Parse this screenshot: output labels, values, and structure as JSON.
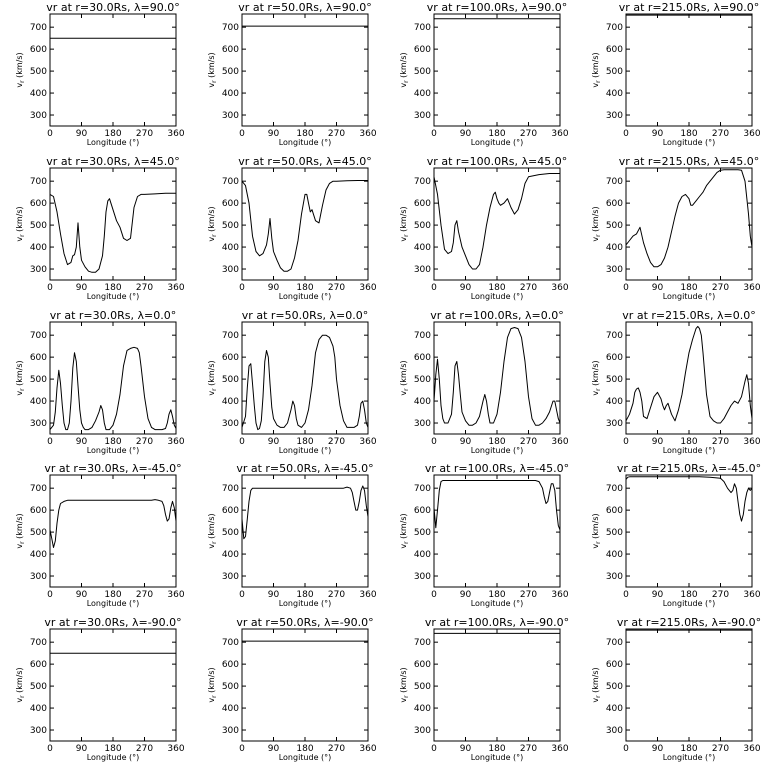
{
  "figure": {
    "xlabel": "Longitude (°)",
    "ylabel": "v",
    "ylabel_subscript": "r",
    "ylabel_unit": " (km/s)",
    "x_ticks": [
      "0",
      "90",
      "180",
      "270",
      "360"
    ],
    "y_ticks": [
      "300",
      "400",
      "500",
      "600",
      "700"
    ],
    "line_color": "#000000",
    "background": "#ffffff"
  },
  "chart_data": [
    {
      "type": "line",
      "title": "vr at r=30.0Rs, λ=90.0°",
      "xlabel": "Longitude (°)",
      "ylabel": "vr (km/s)",
      "xlim": [
        0,
        360
      ],
      "ylim": [
        250,
        760
      ],
      "x": [
        0,
        360
      ],
      "y": [
        650,
        650
      ]
    },
    {
      "type": "line",
      "title": "vr at r=50.0Rs, λ=90.0°",
      "xlabel": "Longitude (°)",
      "ylabel": "vr (km/s)",
      "xlim": [
        0,
        360
      ],
      "ylim": [
        250,
        760
      ],
      "x": [
        0,
        360
      ],
      "y": [
        705,
        705
      ]
    },
    {
      "type": "line",
      "title": "vr at r=100.0Rs, λ=90.0°",
      "xlabel": "Longitude (°)",
      "ylabel": "vr (km/s)",
      "xlim": [
        0,
        360
      ],
      "ylim": [
        250,
        760
      ],
      "x": [
        0,
        360
      ],
      "y": [
        738,
        738
      ]
    },
    {
      "type": "line",
      "title": "vr at r=215.0Rs, λ=90.0°",
      "xlabel": "Longitude (°)",
      "ylabel": "vr (km/s)",
      "xlim": [
        0,
        360
      ],
      "ylim": [
        250,
        760
      ],
      "x": [
        0,
        360
      ],
      "y": [
        755,
        755
      ]
    },
    {
      "type": "line",
      "title": "vr at r=30.0Rs, λ=45.0°",
      "xlabel": "Longitude (°)",
      "ylabel": "vr (km/s)",
      "xlim": [
        0,
        360
      ],
      "ylim": [
        250,
        760
      ],
      "x": [
        0,
        10,
        20,
        30,
        40,
        50,
        60,
        65,
        70,
        75,
        80,
        85,
        90,
        100,
        110,
        120,
        130,
        140,
        150,
        155,
        160,
        165,
        170,
        180,
        190,
        200,
        210,
        220,
        230,
        240,
        250,
        260,
        270,
        300,
        330,
        360
      ],
      "y": [
        640,
        630,
        560,
        460,
        370,
        320,
        330,
        360,
        365,
        400,
        510,
        400,
        340,
        310,
        290,
        285,
        285,
        300,
        360,
        450,
        560,
        610,
        620,
        570,
        520,
        490,
        440,
        430,
        440,
        580,
        630,
        640,
        640,
        642,
        645,
        645
      ]
    },
    {
      "type": "line",
      "title": "vr at r=50.0Rs, λ=45.0°",
      "xlabel": "Longitude (°)",
      "ylabel": "vr (km/s)",
      "xlim": [
        0,
        360
      ],
      "ylim": [
        250,
        760
      ],
      "x": [
        0,
        10,
        20,
        30,
        40,
        50,
        60,
        70,
        75,
        80,
        85,
        90,
        100,
        110,
        120,
        130,
        140,
        150,
        160,
        170,
        180,
        185,
        190,
        195,
        200,
        210,
        220,
        230,
        240,
        250,
        260,
        270,
        300,
        330,
        360
      ],
      "y": [
        700,
        680,
        600,
        450,
        380,
        360,
        370,
        410,
        460,
        530,
        440,
        380,
        340,
        305,
        290,
        290,
        300,
        350,
        430,
        550,
        640,
        640,
        600,
        560,
        570,
        520,
        510,
        590,
        660,
        690,
        700,
        700,
        702,
        703,
        703
      ]
    },
    {
      "type": "line",
      "title": "vr at r=100.0Rs, λ=45.0°",
      "xlabel": "Longitude (°)",
      "ylabel": "vr (km/s)",
      "xlim": [
        0,
        360
      ],
      "ylim": [
        250,
        760
      ],
      "x": [
        0,
        10,
        20,
        30,
        40,
        50,
        55,
        60,
        65,
        70,
        80,
        90,
        100,
        110,
        120,
        130,
        140,
        150,
        160,
        170,
        175,
        180,
        185,
        190,
        200,
        210,
        220,
        230,
        240,
        250,
        260,
        270,
        300,
        330,
        360
      ],
      "y": [
        720,
        640,
        500,
        390,
        370,
        380,
        420,
        500,
        520,
        470,
        400,
        360,
        320,
        300,
        300,
        320,
        400,
        500,
        580,
        640,
        650,
        620,
        600,
        590,
        600,
        620,
        580,
        550,
        570,
        620,
        690,
        720,
        730,
        735,
        735
      ]
    },
    {
      "type": "line",
      "title": "vr at r=215.0Rs, λ=45.0°",
      "xlabel": "Longitude (°)",
      "ylabel": "vr (km/s)",
      "xlim": [
        0,
        360
      ],
      "ylim": [
        250,
        760
      ],
      "x": [
        0,
        10,
        20,
        30,
        40,
        50,
        60,
        70,
        80,
        90,
        100,
        110,
        120,
        130,
        140,
        150,
        160,
        170,
        180,
        185,
        190,
        200,
        210,
        220,
        230,
        240,
        250,
        260,
        270,
        280,
        290,
        300,
        320,
        330,
        340,
        350,
        355,
        360
      ],
      "y": [
        410,
        430,
        450,
        460,
        490,
        420,
        370,
        330,
        310,
        310,
        320,
        350,
        400,
        470,
        540,
        600,
        630,
        640,
        620,
        590,
        590,
        610,
        630,
        650,
        680,
        700,
        720,
        740,
        750,
        752,
        752,
        752,
        752,
        750,
        700,
        550,
        450,
        400
      ]
    },
    {
      "type": "line",
      "title": "vr at r=30.0Rs, λ=0.0°",
      "xlabel": "Longitude (°)",
      "ylabel": "vr (km/s)",
      "xlim": [
        0,
        360
      ],
      "ylim": [
        250,
        760
      ],
      "x": [
        0,
        10,
        15,
        20,
        25,
        30,
        35,
        40,
        45,
        50,
        55,
        60,
        65,
        70,
        75,
        80,
        85,
        90,
        95,
        100,
        105,
        110,
        120,
        130,
        140,
        145,
        150,
        155,
        160,
        170,
        180,
        190,
        200,
        210,
        220,
        230,
        240,
        250,
        255,
        260,
        270,
        280,
        290,
        300,
        310,
        320,
        330,
        335,
        340,
        345,
        350,
        355,
        360
      ],
      "y": [
        270,
        290,
        350,
        460,
        540,
        480,
        380,
        300,
        270,
        270,
        300,
        400,
        550,
        620,
        580,
        470,
        360,
        300,
        280,
        270,
        270,
        270,
        280,
        310,
        350,
        380,
        360,
        300,
        270,
        270,
        290,
        340,
        430,
        560,
        630,
        640,
        645,
        640,
        620,
        560,
        420,
        320,
        280,
        270,
        270,
        270,
        275,
        300,
        340,
        360,
        330,
        290,
        275
      ]
    },
    {
      "type": "line",
      "title": "vr at r=50.0Rs, λ=0.0°",
      "xlabel": "Longitude (°)",
      "ylabel": "vr (km/s)",
      "xlim": [
        0,
        360
      ],
      "ylim": [
        250,
        760
      ],
      "x": [
        0,
        10,
        15,
        20,
        25,
        30,
        35,
        40,
        45,
        50,
        55,
        60,
        65,
        70,
        75,
        80,
        85,
        90,
        100,
        110,
        120,
        130,
        140,
        145,
        150,
        155,
        160,
        170,
        180,
        190,
        200,
        210,
        220,
        230,
        240,
        250,
        260,
        265,
        270,
        280,
        290,
        300,
        310,
        320,
        330,
        335,
        340,
        345,
        350,
        355,
        360
      ],
      "y": [
        280,
        330,
        460,
        560,
        570,
        480,
        380,
        300,
        270,
        275,
        310,
        420,
        580,
        630,
        600,
        480,
        370,
        320,
        290,
        280,
        280,
        300,
        360,
        400,
        380,
        320,
        290,
        280,
        300,
        360,
        470,
        620,
        680,
        700,
        700,
        690,
        650,
        600,
        500,
        380,
        310,
        280,
        280,
        280,
        290,
        330,
        390,
        400,
        360,
        300,
        280
      ]
    },
    {
      "type": "line",
      "title": "vr at r=100.0Rs, λ=0.0°",
      "xlabel": "Longitude (°)",
      "ylabel": "vr (km/s)",
      "xlim": [
        0,
        360
      ],
      "ylim": [
        250,
        760
      ],
      "x": [
        0,
        5,
        10,
        15,
        20,
        25,
        30,
        40,
        50,
        55,
        60,
        65,
        70,
        75,
        80,
        90,
        100,
        110,
        120,
        130,
        140,
        145,
        150,
        155,
        160,
        170,
        180,
        190,
        200,
        210,
        220,
        230,
        240,
        250,
        260,
        270,
        280,
        290,
        300,
        310,
        320,
        330,
        340,
        345,
        350,
        355,
        360
      ],
      "y": [
        400,
        520,
        590,
        500,
        380,
        320,
        300,
        300,
        340,
        440,
        560,
        580,
        520,
        430,
        350,
        310,
        290,
        290,
        300,
        330,
        400,
        430,
        400,
        340,
        300,
        300,
        340,
        440,
        580,
        690,
        730,
        735,
        730,
        690,
        580,
        420,
        320,
        290,
        290,
        300,
        320,
        350,
        400,
        400,
        360,
        320,
        300
      ]
    },
    {
      "type": "line",
      "title": "vr at r=215.0Rs, λ=0.0°",
      "xlabel": "Longitude (°)",
      "ylabel": "vr (km/s)",
      "xlim": [
        0,
        360
      ],
      "ylim": [
        250,
        760
      ],
      "x": [
        0,
        10,
        20,
        25,
        30,
        35,
        40,
        45,
        50,
        60,
        70,
        80,
        90,
        100,
        105,
        110,
        115,
        120,
        130,
        140,
        150,
        160,
        170,
        180,
        190,
        200,
        205,
        210,
        215,
        220,
        230,
        240,
        250,
        260,
        270,
        280,
        290,
        300,
        310,
        320,
        330,
        340,
        345,
        350,
        355,
        360
      ],
      "y": [
        310,
        340,
        390,
        440,
        455,
        460,
        440,
        400,
        330,
        320,
        370,
        420,
        440,
        410,
        380,
        360,
        380,
        390,
        340,
        310,
        360,
        430,
        530,
        620,
        680,
        730,
        740,
        730,
        700,
        620,
        430,
        330,
        310,
        300,
        300,
        320,
        350,
        380,
        400,
        390,
        420,
        490,
        520,
        480,
        380,
        320
      ]
    },
    {
      "type": "line",
      "title": "vr at r=30.0Rs, λ=-45.0°",
      "xlabel": "Longitude (°)",
      "ylabel": "vr (km/s)",
      "xlim": [
        0,
        360
      ],
      "ylim": [
        250,
        760
      ],
      "x": [
        0,
        5,
        10,
        15,
        20,
        25,
        30,
        40,
        50,
        60,
        70,
        90,
        120,
        150,
        180,
        210,
        240,
        270,
        290,
        300,
        310,
        320,
        325,
        330,
        335,
        340,
        345,
        350,
        355,
        360
      ],
      "y": [
        510,
        470,
        430,
        460,
        540,
        600,
        630,
        640,
        645,
        645,
        645,
        645,
        645,
        645,
        645,
        645,
        645,
        645,
        645,
        648,
        645,
        640,
        620,
        580,
        550,
        560,
        610,
        640,
        610,
        550
      ]
    },
    {
      "type": "line",
      "title": "vr at r=50.0Rs, λ=-45.0°",
      "xlabel": "Longitude (°)",
      "ylabel": "vr (km/s)",
      "xlim": [
        0,
        360
      ],
      "ylim": [
        250,
        760
      ],
      "x": [
        0,
        5,
        10,
        15,
        20,
        25,
        30,
        40,
        60,
        90,
        120,
        150,
        180,
        210,
        240,
        270,
        290,
        300,
        310,
        315,
        320,
        325,
        330,
        335,
        340,
        345,
        350,
        355,
        360
      ],
      "y": [
        560,
        470,
        480,
        560,
        640,
        690,
        700,
        700,
        700,
        700,
        700,
        700,
        700,
        700,
        700,
        700,
        700,
        705,
        700,
        680,
        640,
        600,
        600,
        640,
        690,
        710,
        690,
        620,
        570
      ]
    },
    {
      "type": "line",
      "title": "vr at r=100.0Rs, λ=-45.0°",
      "xlabel": "Longitude (°)",
      "ylabel": "vr (km/s)",
      "xlim": [
        0,
        360
      ],
      "ylim": [
        250,
        760
      ],
      "x": [
        0,
        5,
        10,
        15,
        20,
        25,
        30,
        40,
        60,
        90,
        120,
        150,
        180,
        210,
        240,
        270,
        290,
        300,
        310,
        315,
        320,
        325,
        330,
        335,
        340,
        345,
        350,
        355,
        360
      ],
      "y": [
        610,
        520,
        600,
        690,
        730,
        735,
        735,
        735,
        735,
        735,
        735,
        735,
        735,
        735,
        735,
        735,
        735,
        730,
        700,
        660,
        630,
        640,
        680,
        720,
        720,
        690,
        600,
        530,
        510
      ]
    },
    {
      "type": "line",
      "title": "vr at r=215.0Rs, λ=-45.0°",
      "xlabel": "Longitude (°)",
      "ylabel": "vr (km/s)",
      "xlim": [
        0,
        360
      ],
      "ylim": [
        250,
        760
      ],
      "x": [
        0,
        5,
        10,
        20,
        40,
        60,
        90,
        120,
        150,
        180,
        210,
        240,
        270,
        280,
        290,
        300,
        305,
        310,
        315,
        320,
        325,
        330,
        335,
        340,
        345,
        350,
        355,
        360
      ],
      "y": [
        740,
        750,
        752,
        752,
        752,
        752,
        752,
        752,
        752,
        752,
        752,
        750,
        745,
        730,
        700,
        680,
        690,
        720,
        700,
        640,
        580,
        550,
        580,
        640,
        680,
        700,
        690,
        700
      ]
    },
    {
      "type": "line",
      "title": "vr at r=30.0Rs, λ=-90.0°",
      "xlabel": "Longitude (°)",
      "ylabel": "vr (km/s)",
      "xlim": [
        0,
        360
      ],
      "ylim": [
        250,
        760
      ],
      "x": [
        0,
        360
      ],
      "y": [
        650,
        650
      ]
    },
    {
      "type": "line",
      "title": "vr at r=50.0Rs, λ=-90.0°",
      "xlabel": "Longitude (°)",
      "ylabel": "vr (km/s)",
      "xlim": [
        0,
        360
      ],
      "ylim": [
        250,
        760
      ],
      "x": [
        0,
        360
      ],
      "y": [
        705,
        705
      ]
    },
    {
      "type": "line",
      "title": "vr at r=100.0Rs, λ=-90.0°",
      "xlabel": "Longitude (°)",
      "ylabel": "vr (km/s)",
      "xlim": [
        0,
        360
      ],
      "ylim": [
        250,
        760
      ],
      "x": [
        0,
        360
      ],
      "y": [
        740,
        740
      ]
    },
    {
      "type": "line",
      "title": "vr at r=215.0Rs, λ=-90.0°",
      "xlabel": "Longitude (°)",
      "ylabel": "vr (km/s)",
      "xlim": [
        0,
        360
      ],
      "ylim": [
        250,
        760
      ],
      "x": [
        0,
        360
      ],
      "y": [
        755,
        755
      ]
    }
  ]
}
